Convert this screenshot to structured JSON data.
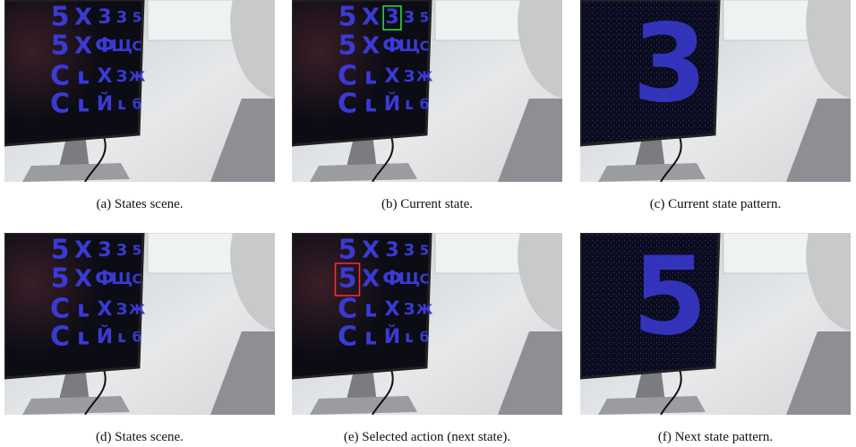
{
  "panels": [
    {
      "caption": "(a)  States scene.",
      "grid": [
        [
          "5",
          "X",
          "3",
          "3",
          "5"
        ],
        [
          "5",
          "X",
          "Ф",
          "Щ",
          "C"
        ],
        [
          "C",
          "ʟ",
          "X",
          "З",
          "Ж"
        ],
        [
          "C",
          "ʟ",
          "Й",
          "ʟ",
          "б"
        ]
      ]
    },
    {
      "caption": "(b)  Current state.",
      "grid": [
        [
          "5",
          "X",
          "3",
          "3",
          "5"
        ],
        [
          "5",
          "X",
          "Ф",
          "Щ",
          "C"
        ],
        [
          "C",
          "ʟ",
          "X",
          "З",
          "Ж"
        ],
        [
          "C",
          "ʟ",
          "Й",
          "ʟ",
          "б"
        ]
      ]
    },
    {
      "caption": "(c)  Current state pattern.",
      "digit": "3"
    },
    {
      "caption": "(d)  States scene.",
      "grid": [
        [
          "5",
          "X",
          "3",
          "3",
          "5"
        ],
        [
          "5",
          "X",
          "Ф",
          "Щ",
          "C"
        ],
        [
          "C",
          "ʟ",
          "X",
          "З",
          "Ж"
        ],
        [
          "C",
          "ʟ",
          "Й",
          "ʟ",
          "б"
        ]
      ]
    },
    {
      "caption": "(e)  Selected action (next state).",
      "grid": [
        [
          "5",
          "X",
          "3",
          "3",
          "5"
        ],
        [
          "5",
          "X",
          "Ф",
          "Щ",
          "C"
        ],
        [
          "C",
          "ʟ",
          "X",
          "З",
          "Ж"
        ],
        [
          "C",
          "ʟ",
          "Й",
          "ʟ",
          "б"
        ]
      ]
    },
    {
      "caption": "(f)  Next state pattern.",
      "digit": "5"
    }
  ]
}
